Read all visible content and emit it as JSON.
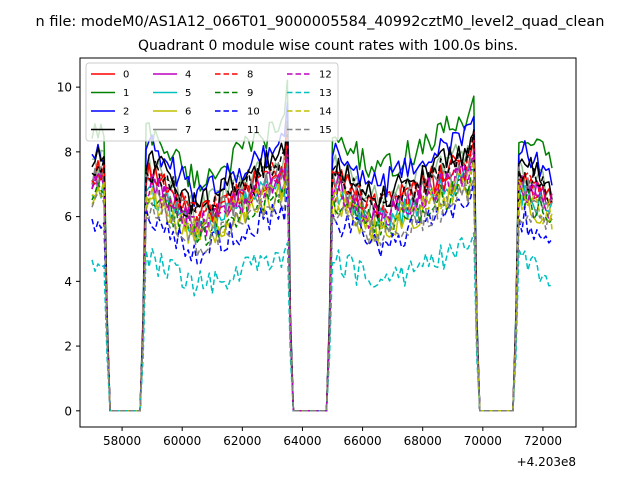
{
  "chart_data": {
    "type": "line",
    "suptitle": "n file: modeM0/AS1A12_066T01_9000005584_40992cztM0_level2_quad_clean",
    "title": "Quadrant 0 module wise count rates with 100.0s bins.",
    "xlabel": "",
    "ylabel": "",
    "x_offset_label": "+4.203e8",
    "xlim": [
      56600,
      73100
    ],
    "ylim": [
      -0.5,
      10.9
    ],
    "x_ticks": [
      58000,
      60000,
      62000,
      64000,
      66000,
      68000,
      70000,
      72000
    ],
    "x_tick_labels": [
      "58000",
      "60000",
      "62000",
      "64000",
      "66000",
      "68000",
      "70000",
      "72000"
    ],
    "y_ticks": [
      0,
      2,
      4,
      6,
      8,
      10
    ],
    "y_tick_labels": [
      "0",
      "2",
      "4",
      "6",
      "8",
      "10"
    ],
    "grid": false,
    "legend_placement": "top-left",
    "segments": [
      {
        "x_start": 57000,
        "x_end": 57400
      },
      {
        "x_start": 58800,
        "x_end": 63500
      },
      {
        "x_start": 65000,
        "x_end": 69700
      },
      {
        "x_start": 71200,
        "x_end": 72300
      }
    ],
    "gap_value": 0,
    "series": [
      {
        "name": "0",
        "color": "#ff0000",
        "dash": "solid",
        "level": 7.3
      },
      {
        "name": "1",
        "color": "#008000",
        "dash": "solid",
        "level": 8.6
      },
      {
        "name": "2",
        "color": "#0000ff",
        "dash": "solid",
        "level": 8.1
      },
      {
        "name": "3",
        "color": "#000000",
        "dash": "solid",
        "level": 7.7
      },
      {
        "name": "4",
        "color": "#bf00bf",
        "dash": "solid",
        "level": 7.0
      },
      {
        "name": "5",
        "color": "#00bfbf",
        "dash": "solid",
        "level": 6.8
      },
      {
        "name": "6",
        "color": "#bfbf00",
        "dash": "solid",
        "level": 6.5
      },
      {
        "name": "7",
        "color": "#808080",
        "dash": "solid",
        "level": 7.1
      },
      {
        "name": "8",
        "color": "#ff0000",
        "dash": "dashed",
        "level": 7.2
      },
      {
        "name": "9",
        "color": "#008000",
        "dash": "dashed",
        "level": 6.6
      },
      {
        "name": "10",
        "color": "#0000ff",
        "dash": "dashed",
        "level": 6.0
      },
      {
        "name": "11",
        "color": "#000000",
        "dash": "dashed",
        "level": 7.4
      },
      {
        "name": "12",
        "color": "#bf00bf",
        "dash": "dashed",
        "level": 6.9
      },
      {
        "name": "13",
        "color": "#00bfbf",
        "dash": "dashed",
        "level": 4.7
      },
      {
        "name": "14",
        "color": "#bfbf00",
        "dash": "dashed",
        "level": 6.7
      },
      {
        "name": "15",
        "color": "#808080",
        "dash": "dashed",
        "level": 6.3
      }
    ],
    "extra_series": {
      "color": "#8fbf8f",
      "dash": "solid",
      "level": 7.6
    }
  }
}
